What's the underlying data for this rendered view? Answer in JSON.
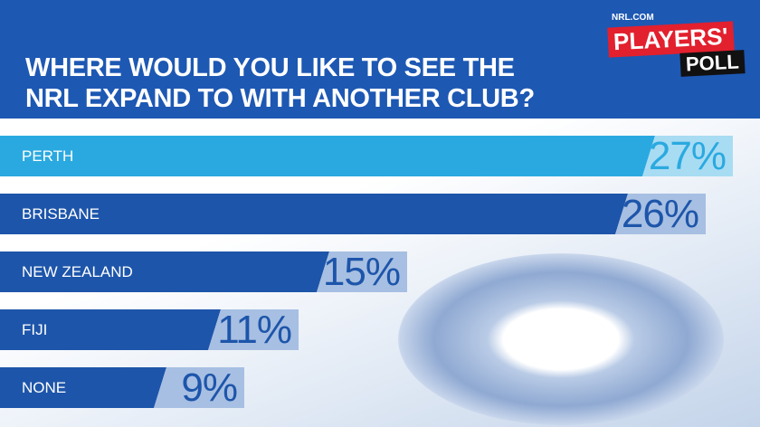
{
  "brand": {
    "site": "NRL.COM",
    "name": "PLAYERS'",
    "sub": "POLL"
  },
  "chart_data": {
    "type": "bar",
    "orientation": "horizontal",
    "title": "WHERE WOULD YOU LIKE TO SEE THE NRL EXPAND TO WITH ANOTHER CLUB?",
    "categories": [
      "PERTH",
      "BRISBANE",
      "NEW ZEALAND",
      "FIJI",
      "NONE"
    ],
    "values": [
      27,
      26,
      15,
      11,
      9
    ],
    "value_labels": [
      "27%",
      "26%",
      "15%",
      "11%",
      "9%"
    ],
    "colors": [
      "#2aa9e0",
      "#1d55aa",
      "#1d55aa",
      "#1d55aa",
      "#1d55aa"
    ],
    "label_colors": [
      "#a8dcf3",
      "#a7bfe2",
      "#a7bfe2",
      "#a7bfe2",
      "#a7bfe2"
    ],
    "xlim": [
      0,
      28
    ]
  }
}
